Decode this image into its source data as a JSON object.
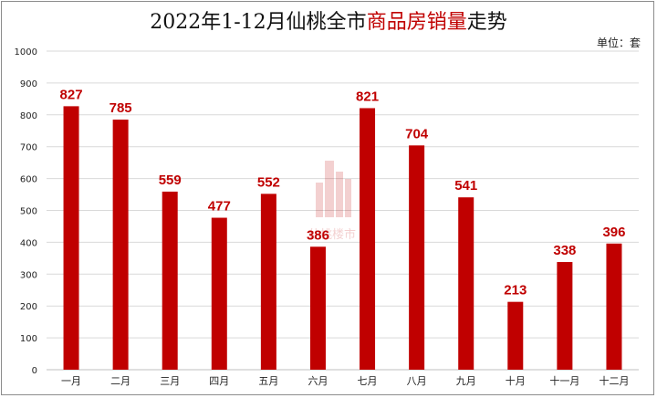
{
  "title": {
    "prefix": "2022年1-12月仙桃全市",
    "highlight": "商品房销量",
    "suffix": "走势"
  },
  "unit_label": "单位：套",
  "watermark_text": "仙桃楼市",
  "colors": {
    "bar": "#c00000",
    "grid": "#d9d9d9",
    "label": "#c00000"
  },
  "chart_data": {
    "type": "bar",
    "title": "2022年1-12月仙桃全市商品房销量走势",
    "xlabel": "",
    "ylabel": "",
    "unit": "单位：套",
    "categories": [
      "一月",
      "二月",
      "三月",
      "四月",
      "五月",
      "六月",
      "七月",
      "八月",
      "九月",
      "十月",
      "十一月",
      "十二月"
    ],
    "values": [
      827,
      785,
      559,
      477,
      552,
      386,
      821,
      704,
      541,
      213,
      338,
      396
    ],
    "ylim": [
      0,
      1000
    ],
    "yticks": [
      0,
      100,
      200,
      300,
      400,
      500,
      600,
      700,
      800,
      900,
      1000
    ],
    "grid": true,
    "legend": "none"
  }
}
